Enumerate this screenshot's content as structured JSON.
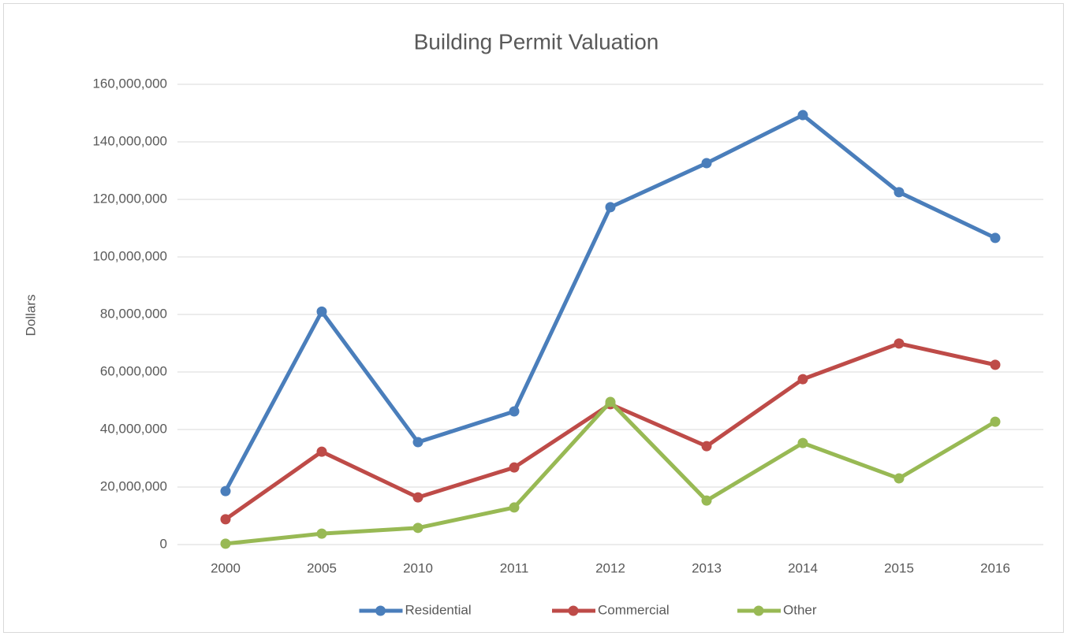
{
  "chart_data": {
    "type": "line",
    "title": "Building Permit Valuation",
    "y_label": "Dollars",
    "categories": [
      "2000",
      "2005",
      "2010",
      "2011",
      "2012",
      "2013",
      "2014",
      "2015",
      "2016"
    ],
    "series": [
      {
        "name": "Residential",
        "color": "#4a7ebb",
        "values": [
          18600000,
          81000000,
          35600000,
          46300000,
          117300000,
          132600000,
          149300000,
          122500000,
          106600000
        ]
      },
      {
        "name": "Commercial",
        "color": "#be4b48",
        "values": [
          8800000,
          32300000,
          16400000,
          26800000,
          48800000,
          34200000,
          57500000,
          69900000,
          62500000
        ]
      },
      {
        "name": "Other",
        "color": "#98b954",
        "values": [
          300000,
          3800000,
          5800000,
          12900000,
          49600000,
          15300000,
          35300000,
          23000000,
          42700000
        ]
      }
    ],
    "ylim": [
      0,
      160000000
    ],
    "yticks": [
      0,
      {
        "value": 20000000,
        "label": "20,000,000"
      },
      {
        "value": 40000000,
        "label": "40,000,000"
      },
      {
        "value": 60000000,
        "label": "60,000,000"
      },
      {
        "value": 80000000,
        "label": "80,000,000"
      },
      {
        "value": 100000000,
        "label": "100,000,000"
      },
      {
        "value": 120000000,
        "label": "120,000,000"
      },
      {
        "value": 140000000,
        "label": "140,000,000"
      },
      {
        "value": 160000000,
        "label": "160,000,000"
      }
    ],
    "grid": true,
    "legend": "bottom"
  }
}
